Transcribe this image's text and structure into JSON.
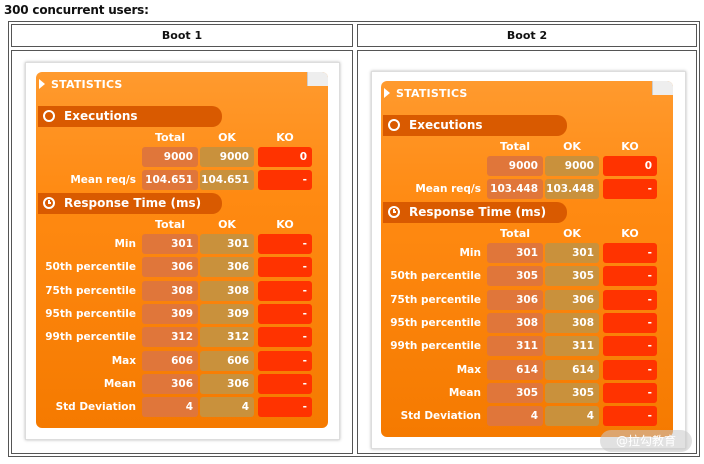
{
  "heading": "300 concurrent users:",
  "columns": [
    "Boot 1",
    "Boot 2"
  ],
  "col_labels": {
    "total": "Total",
    "ok": "OK",
    "ko": "KO"
  },
  "panels": [
    {
      "stats_title": "STATISTICS",
      "executions_title": "Executions",
      "response_title": "Response Time (ms)",
      "exec_rows": [
        {
          "label": "",
          "total": "9000",
          "ok": "9000",
          "ko": "0"
        },
        {
          "label": "Mean req/s",
          "total": "104.651",
          "ok": "104.651",
          "ko": "-"
        }
      ],
      "rt_rows": [
        {
          "label": "Min",
          "total": "301",
          "ok": "301",
          "ko": "-"
        },
        {
          "label": "50th percentile",
          "total": "306",
          "ok": "306",
          "ko": "-"
        },
        {
          "label": "75th percentile",
          "total": "308",
          "ok": "308",
          "ko": "-"
        },
        {
          "label": "95th percentile",
          "total": "309",
          "ok": "309",
          "ko": "-"
        },
        {
          "label": "99th percentile",
          "total": "312",
          "ok": "312",
          "ko": "-"
        },
        {
          "label": "Max",
          "total": "606",
          "ok": "606",
          "ko": "-"
        },
        {
          "label": "Mean",
          "total": "306",
          "ok": "306",
          "ko": "-"
        },
        {
          "label": "Std Deviation",
          "total": "4",
          "ok": "4",
          "ko": "-"
        }
      ]
    },
    {
      "stats_title": "STATISTICS",
      "executions_title": "Executions",
      "response_title": "Response Time (ms)",
      "exec_rows": [
        {
          "label": "",
          "total": "9000",
          "ok": "9000",
          "ko": "0"
        },
        {
          "label": "Mean req/s",
          "total": "103.448",
          "ok": "103.448",
          "ko": "-"
        }
      ],
      "rt_rows": [
        {
          "label": "Min",
          "total": "301",
          "ok": "301",
          "ko": "-"
        },
        {
          "label": "50th percentile",
          "total": "305",
          "ok": "305",
          "ko": "-"
        },
        {
          "label": "75th percentile",
          "total": "306",
          "ok": "306",
          "ko": "-"
        },
        {
          "label": "95th percentile",
          "total": "308",
          "ok": "308",
          "ko": "-"
        },
        {
          "label": "99th percentile",
          "total": "311",
          "ok": "311",
          "ko": "-"
        },
        {
          "label": "Max",
          "total": "614",
          "ok": "614",
          "ko": "-"
        },
        {
          "label": "Mean",
          "total": "305",
          "ok": "305",
          "ko": "-"
        },
        {
          "label": "Std Deviation",
          "total": "4",
          "ok": "4",
          "ko": "-"
        }
      ]
    }
  ],
  "watermark": "@拉勾教育"
}
